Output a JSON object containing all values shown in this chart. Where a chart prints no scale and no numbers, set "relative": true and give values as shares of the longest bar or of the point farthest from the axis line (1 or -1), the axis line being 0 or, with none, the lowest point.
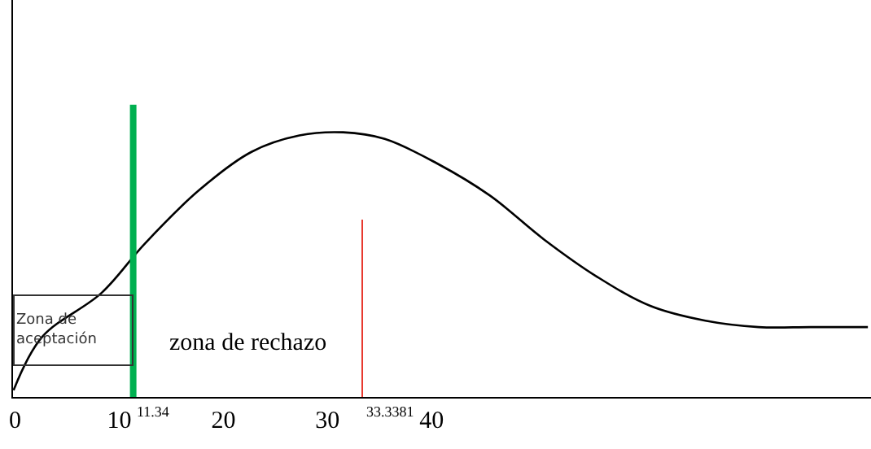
{
  "chart_data": {
    "type": "line",
    "relative": true,
    "x": [
      -0.15,
      2.6,
      8.3,
      12.4,
      17.6,
      22.7,
      27.3,
      31.5,
      35.5,
      40.5,
      45.6,
      50.8,
      55.9,
      61.0,
      66.3,
      71.4,
      76.4,
      81.9
    ],
    "series": [
      {
        "color": "#000000",
        "values": [
          0.025,
          0.227,
          0.393,
          0.577,
          0.779,
          0.926,
          0.988,
          1.0,
          0.975,
          0.883,
          0.761,
          0.595,
          0.454,
          0.344,
          0.288,
          0.264,
          0.264,
          0.264
        ]
      }
    ],
    "xlim": [
      -0.2,
      82.2
    ],
    "xticks": [
      0,
      10,
      20,
      30,
      40
    ],
    "ref_lines": [
      {
        "axis": "x",
        "value": 11.34,
        "label": "11.34",
        "color": "#00b050"
      },
      {
        "axis": "x",
        "value": 33.3381,
        "label": "33.3381",
        "color": "#e8392f"
      }
    ],
    "annotations": [
      "Zona de aceptación",
      "zona de rechazo"
    ],
    "marker": "none",
    "line_style": "solid"
  }
}
